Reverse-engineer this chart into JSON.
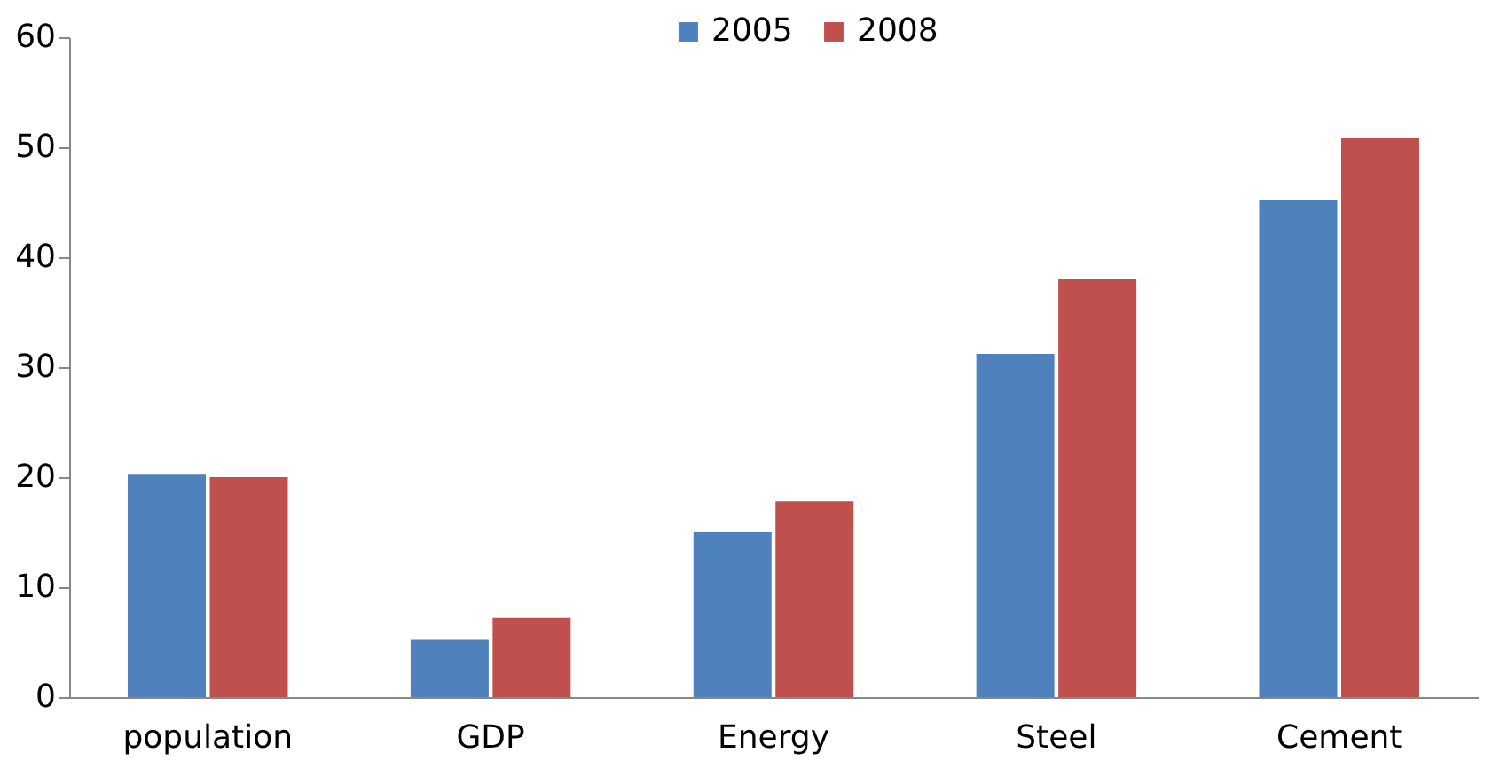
{
  "chart_data": {
    "type": "bar",
    "categories": [
      "population",
      "GDP",
      "Energy",
      "Steel",
      "Cement"
    ],
    "series": [
      {
        "name": "2005",
        "color": "#4f81bd",
        "values": [
          20.3,
          5.2,
          15.0,
          31.2,
          45.2
        ]
      },
      {
        "name": "2008",
        "color": "#c0504d",
        "values": [
          20.0,
          7.2,
          17.8,
          38.0,
          50.8
        ]
      }
    ],
    "ylim": [
      0,
      60
    ],
    "yticks": [
      0,
      10,
      20,
      30,
      40,
      50,
      60
    ],
    "grid": false,
    "legend": "top"
  }
}
